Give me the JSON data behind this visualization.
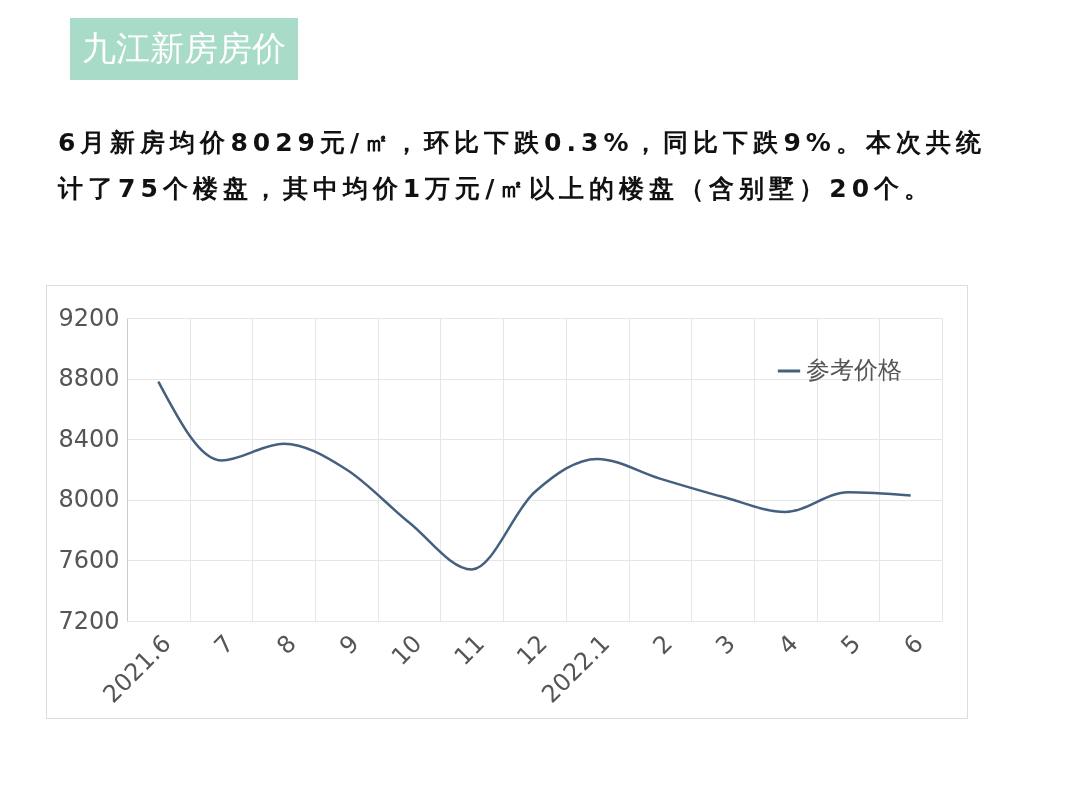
{
  "chart_data": {
    "type": "line",
    "title": "九江新房房价",
    "subtitle": "6月新房均价8029元/㎡，环比下跌0.3%，同比下跌9%。本次共统计了75个楼盘，其中均价1万元/㎡以上的楼盘（含别墅）20个。",
    "categories": [
      "2021.6",
      "7",
      "8",
      "9",
      "10",
      "11",
      "12",
      "2022.1",
      "2",
      "3",
      "4",
      "5",
      "6"
    ],
    "series": [
      {
        "name": "参考价格",
        "color": "#44607f",
        "values": [
          8780,
          8260,
          8370,
          8200,
          7850,
          7540,
          8050,
          8270,
          8140,
          8020,
          7920,
          8050,
          8029
        ]
      }
    ],
    "ylim": [
      7200,
      9200
    ],
    "yticks": [
      7200,
      7600,
      8000,
      8400,
      8800,
      9200
    ],
    "grid": true,
    "legend": "top right",
    "marker": "none",
    "line_style": "solid"
  }
}
